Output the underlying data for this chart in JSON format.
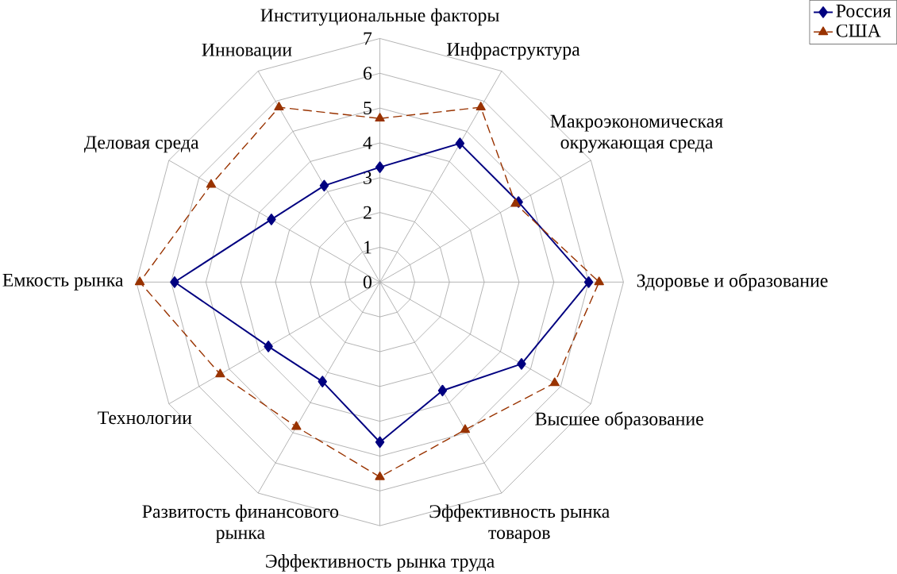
{
  "chart_data": {
    "type": "radar",
    "categories": [
      "Институциональные факторы",
      "Инфраструктура",
      "Макроэкономическая окружающая среда",
      "Здоровье и образование",
      "Высшее образование",
      "Эффективность рынка товаров",
      "Эффективность рынка труда",
      "Развитость финансового рынка",
      "Технологии",
      "Емкость рынка",
      "Деловая среда",
      "Инновации"
    ],
    "series": [
      {
        "name": "Россия",
        "color": "#000080",
        "marker": "diamond",
        "line_style": "solid",
        "values": [
          3.3,
          4.6,
          4.6,
          6.0,
          4.7,
          3.6,
          4.6,
          3.3,
          3.7,
          5.9,
          3.6,
          3.2
        ]
      },
      {
        "name": "США",
        "color": "#993300",
        "marker": "triangle",
        "line_style": "dashed",
        "values": [
          4.7,
          5.8,
          4.5,
          6.3,
          5.8,
          4.9,
          5.6,
          4.8,
          5.3,
          6.9,
          5.6,
          5.8
        ]
      }
    ],
    "ylim": [
      0,
      7
    ],
    "yticks": [
      0,
      1,
      2,
      3,
      4,
      5,
      6,
      7
    ],
    "grid": true,
    "legend": "top right"
  }
}
